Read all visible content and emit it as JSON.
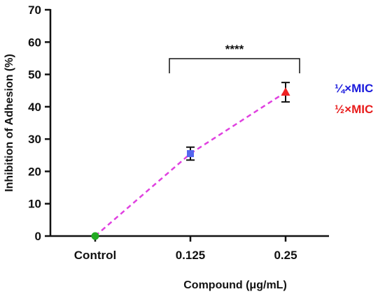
{
  "chart_data": {
    "type": "line",
    "title": "",
    "xlabel": "Compound (μg/mL)",
    "ylabel": "Inhibition of Adhesion (%)",
    "ylim": [
      0,
      70
    ],
    "yticks": [
      "0",
      "10",
      "20",
      "30",
      "40",
      "50",
      "60",
      "70"
    ],
    "categories": [
      "Control",
      "0.125",
      "0.25"
    ],
    "points": [
      {
        "category": "Control",
        "y": 0,
        "err": 0,
        "color": "#22aa22",
        "marker": "circle"
      },
      {
        "category": "0.125",
        "y": 25.5,
        "err": 2.0,
        "color": "#5566ee",
        "marker": "square"
      },
      {
        "category": "0.25",
        "y": 44.5,
        "err": 3.0,
        "color": "#ee2222",
        "marker": "triangle"
      }
    ],
    "line_color": "#e040e0",
    "line_style": "dashed",
    "significance": {
      "from": "0.125",
      "to": "0.25",
      "label": "****"
    },
    "legend": [
      {
        "label": "¼×MIC",
        "color": "#1a1adc"
      },
      {
        "label": "½×MIC",
        "color": "#e81c1c"
      }
    ],
    "legend_position": "right",
    "grid": false
  }
}
